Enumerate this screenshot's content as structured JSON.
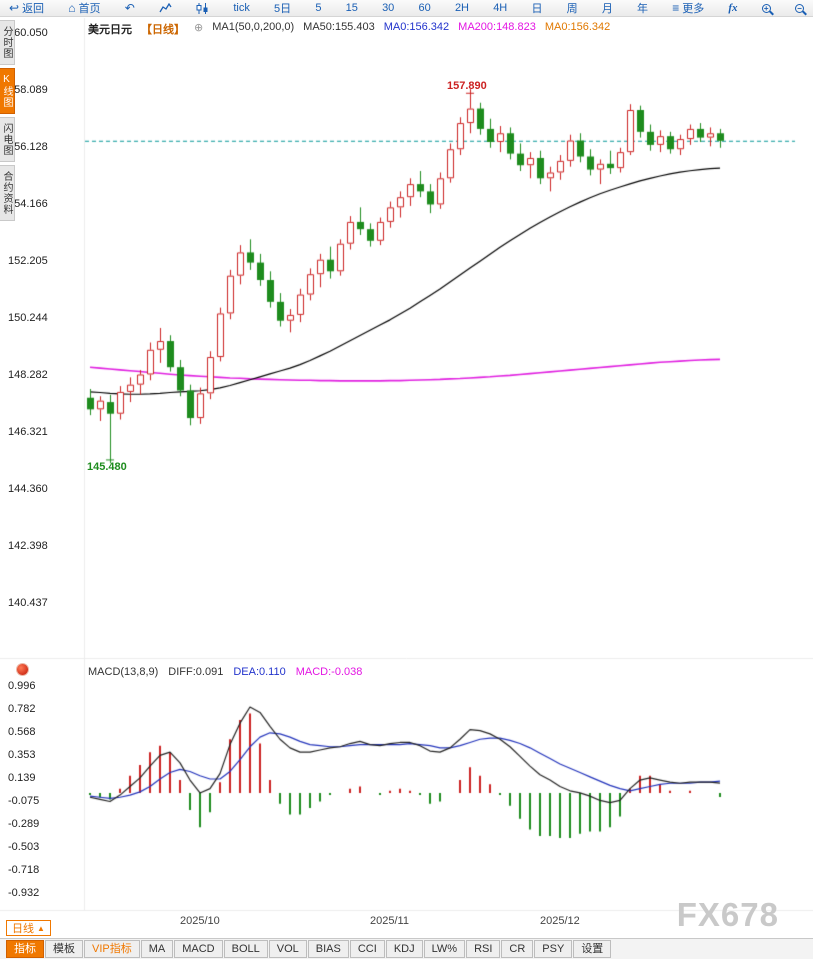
{
  "watermark": "FX678",
  "colors": {
    "up": "#cc2222",
    "down": "#1e8c1e",
    "ma50": "#000000",
    "ma200": "#e020e0",
    "diff": "#222222",
    "dea": "#2233bb",
    "current_line": "#009696",
    "accent_orange": "#f07800",
    "toolbar_blue": "#1a5fb4"
  },
  "toolbar": {
    "items": [
      {
        "name": "back-button",
        "icon": "back-arrow-icon",
        "label": "返回"
      },
      {
        "name": "home-button",
        "icon": "home-icon",
        "label": "首页"
      },
      {
        "name": "refresh-button",
        "icon": "undo-arrow-icon",
        "label": ""
      },
      {
        "name": "line-chart-button",
        "icon": "line-chart-icon",
        "label": ""
      },
      {
        "name": "candle-chart-button",
        "icon": "candle-chart-icon",
        "label": ""
      },
      {
        "name": "period-tick-button",
        "label": "tick"
      },
      {
        "name": "period-5day-button",
        "label": "5日"
      },
      {
        "name": "period-5-button",
        "label": "5"
      },
      {
        "name": "period-15-button",
        "label": "15"
      },
      {
        "name": "period-30-button",
        "label": "30"
      },
      {
        "name": "period-60-button",
        "label": "60"
      },
      {
        "name": "period-2h-button",
        "label": "2H"
      },
      {
        "name": "period-4h-button",
        "label": "4H"
      },
      {
        "name": "period-day-button",
        "label": "日"
      },
      {
        "name": "period-week-button",
        "label": "周"
      },
      {
        "name": "period-month-button",
        "label": "月"
      },
      {
        "name": "period-year-button",
        "label": "年"
      },
      {
        "name": "more-button",
        "icon": "menu-icon",
        "label": "更多"
      },
      {
        "name": "formula-button",
        "label": "fx",
        "italic": true
      },
      {
        "name": "zoom-in-button",
        "icon": "zoom-in-icon",
        "label": ""
      },
      {
        "name": "zoom-out-button",
        "icon": "zoom-out-icon",
        "label": ""
      }
    ]
  },
  "sidebar": {
    "items": [
      {
        "name": "sidebar-item-time-chart",
        "label": "分时图",
        "active": false
      },
      {
        "name": "sidebar-item-kline-chart",
        "label": "K线图",
        "active": true
      },
      {
        "name": "sidebar-item-lightning-chart",
        "label": "闪电图",
        "active": false
      },
      {
        "name": "sidebar-item-contract-info",
        "label": "合约资料",
        "active": false
      }
    ]
  },
  "chart_header": {
    "segments": [
      {
        "name": "chart-title",
        "text": "美元日元",
        "color": "#222222",
        "bold": true
      },
      {
        "name": "chart-period-label",
        "text": "【日线】",
        "color": "#cc6600",
        "bold": true
      },
      {
        "name": "add-indicator-icon",
        "text": "⊕",
        "color": "#999999",
        "icon": true
      },
      {
        "name": "ma-params-label",
        "text": "MA1(50,0,200,0)",
        "color": "#333333"
      },
      {
        "name": "ma50-value",
        "text": "MA50:155.403",
        "color": "#333333"
      },
      {
        "name": "ma0-value-blue",
        "text": "MA0:156.342",
        "color": "#2233cc"
      },
      {
        "name": "ma200-value",
        "text": "MA200:148.823",
        "color": "#e316e3"
      },
      {
        "name": "ma0-value-orange",
        "text": "MA0:156.342",
        "color": "#e07800"
      }
    ]
  },
  "macd_header": {
    "segments": [
      {
        "name": "macd-params-label",
        "text": "MACD(13,8,9)",
        "color": "#333333"
      },
      {
        "name": "macd-diff-value",
        "text": "DIFF:0.091",
        "color": "#333333"
      },
      {
        "name": "macd-dea-value",
        "text": "DEA:0.110",
        "color": "#2233cc"
      },
      {
        "name": "macd-value",
        "text": "MACD:-0.038",
        "color": "#e316e3"
      }
    ]
  },
  "bottom_bar": {
    "left_label": "日线",
    "left_arrow": "▲",
    "tabs": [
      {
        "name": "tab-indicator",
        "label": "指标",
        "style": "active"
      },
      {
        "name": "tab-template",
        "label": "模板",
        "style": "normal"
      },
      {
        "name": "tab-vip-indicator",
        "label": "VIP指标",
        "style": "vip"
      },
      {
        "name": "tab-ma",
        "label": "MA",
        "style": "normal"
      },
      {
        "name": "tab-macd",
        "label": "MACD",
        "style": "normal"
      },
      {
        "name": "tab-boll",
        "label": "BOLL",
        "style": "normal"
      },
      {
        "name": "tab-vol",
        "label": "VOL",
        "style": "normal"
      },
      {
        "name": "tab-bias",
        "label": "BIAS",
        "style": "normal"
      },
      {
        "name": "tab-cci",
        "label": "CCI",
        "style": "normal"
      },
      {
        "name": "tab-kdj",
        "label": "KDJ",
        "style": "normal"
      },
      {
        "name": "tab-lwr",
        "label": "LW%",
        "style": "normal"
      },
      {
        "name": "tab-rsi",
        "label": "RSI",
        "style": "normal"
      },
      {
        "name": "tab-cr",
        "label": "CR",
        "style": "normal"
      },
      {
        "name": "tab-psy",
        "label": "PSY",
        "style": "normal"
      },
      {
        "name": "tab-settings",
        "label": "设置",
        "style": "normal"
      }
    ]
  },
  "chart_data": {
    "type": "candlestick+macd",
    "title": "美元日元【日线】",
    "price_axis_range": [
      140.437,
      160.05
    ],
    "macd_axis_range": [
      -0.932,
      0.996
    ],
    "price_ticks": [
      "160.050",
      "158.089",
      "156.128",
      "154.166",
      "152.205",
      "150.244",
      "148.282",
      "146.321",
      "144.360",
      "142.398",
      "140.437"
    ],
    "macd_ticks": [
      "0.996",
      "0.782",
      "0.568",
      "0.353",
      "0.139",
      "-0.075",
      "-0.289",
      "-0.503",
      "-0.718",
      "-0.932"
    ],
    "month_labels": [
      {
        "label": "2025/10",
        "idx": 11
      },
      {
        "label": "2025/11",
        "idx": 30
      },
      {
        "label": "2025/12",
        "idx": 47
      }
    ],
    "current_price": 156.342,
    "high_annotation": {
      "value": "157.890",
      "idx": 38,
      "price": 157.89
    },
    "low_annotation": {
      "value": "145.480",
      "idx": 2,
      "price": 145.48
    },
    "candles": [
      [
        147.5,
        147.8,
        146.9,
        147.1
      ],
      [
        147.1,
        147.55,
        146.7,
        147.4
      ],
      [
        147.35,
        147.6,
        145.48,
        146.95
      ],
      [
        146.95,
        147.9,
        146.75,
        147.7
      ],
      [
        147.7,
        148.2,
        147.35,
        147.95
      ],
      [
        147.95,
        148.45,
        147.6,
        148.3
      ],
      [
        148.3,
        149.4,
        148.1,
        149.15
      ],
      [
        149.15,
        149.9,
        148.7,
        149.45
      ],
      [
        149.45,
        149.65,
        148.4,
        148.55
      ],
      [
        148.55,
        148.8,
        147.55,
        147.75
      ],
      [
        147.75,
        147.95,
        146.55,
        146.8
      ],
      [
        146.8,
        147.85,
        146.6,
        147.65
      ],
      [
        147.65,
        149.1,
        147.45,
        148.9
      ],
      [
        148.9,
        150.6,
        148.75,
        150.4
      ],
      [
        150.4,
        151.9,
        150.2,
        151.7
      ],
      [
        151.7,
        152.75,
        151.4,
        152.5
      ],
      [
        152.5,
        152.95,
        151.9,
        152.15
      ],
      [
        152.15,
        152.45,
        151.35,
        151.55
      ],
      [
        151.55,
        151.85,
        150.6,
        150.8
      ],
      [
        150.8,
        151.1,
        149.95,
        150.15
      ],
      [
        150.15,
        150.55,
        149.75,
        150.35
      ],
      [
        150.35,
        151.25,
        150.1,
        151.05
      ],
      [
        151.05,
        151.95,
        150.85,
        151.75
      ],
      [
        151.75,
        152.45,
        151.3,
        152.25
      ],
      [
        152.25,
        152.7,
        151.6,
        151.85
      ],
      [
        151.85,
        152.95,
        151.7,
        152.8
      ],
      [
        152.8,
        153.75,
        152.6,
        153.55
      ],
      [
        153.55,
        154.05,
        153.1,
        153.3
      ],
      [
        153.3,
        153.5,
        152.7,
        152.9
      ],
      [
        152.9,
        153.7,
        152.75,
        153.55
      ],
      [
        153.55,
        154.25,
        153.35,
        154.05
      ],
      [
        154.05,
        154.6,
        153.7,
        154.4
      ],
      [
        154.4,
        155.05,
        154.1,
        154.85
      ],
      [
        154.85,
        155.3,
        154.4,
        154.6
      ],
      [
        154.6,
        154.85,
        153.85,
        154.15
      ],
      [
        154.15,
        155.25,
        154.0,
        155.05
      ],
      [
        155.05,
        156.25,
        154.9,
        156.05
      ],
      [
        156.05,
        157.15,
        155.85,
        156.95
      ],
      [
        156.95,
        157.89,
        156.6,
        157.45
      ],
      [
        157.45,
        157.65,
        156.55,
        156.75
      ],
      [
        156.75,
        157.1,
        156.1,
        156.3
      ],
      [
        156.3,
        156.85,
        155.95,
        156.6
      ],
      [
        156.6,
        156.8,
        155.7,
        155.9
      ],
      [
        155.9,
        156.25,
        155.3,
        155.5
      ],
      [
        155.5,
        155.95,
        155.05,
        155.75
      ],
      [
        155.75,
        156.0,
        154.85,
        155.05
      ],
      [
        155.05,
        155.45,
        154.6,
        155.25
      ],
      [
        155.25,
        155.85,
        155.0,
        155.65
      ],
      [
        155.65,
        156.55,
        155.45,
        156.35
      ],
      [
        156.35,
        156.6,
        155.6,
        155.8
      ],
      [
        155.8,
        156.05,
        155.15,
        155.35
      ],
      [
        155.35,
        155.7,
        154.85,
        155.55
      ],
      [
        155.55,
        156.0,
        155.2,
        155.4
      ],
      [
        155.4,
        156.1,
        155.25,
        155.95
      ],
      [
        155.95,
        157.6,
        155.85,
        157.4
      ],
      [
        157.4,
        157.55,
        156.45,
        156.65
      ],
      [
        156.65,
        156.9,
        156.0,
        156.2
      ],
      [
        156.2,
        156.7,
        155.95,
        156.5
      ],
      [
        156.5,
        156.65,
        155.9,
        156.05
      ],
      [
        156.05,
        156.55,
        155.85,
        156.4
      ],
      [
        156.4,
        156.9,
        156.2,
        156.75
      ],
      [
        156.75,
        156.95,
        156.3,
        156.45
      ],
      [
        156.45,
        156.8,
        156.15,
        156.6
      ],
      [
        156.6,
        156.75,
        156.1,
        156.34
      ]
    ],
    "ma50": [
      147.7,
      147.68,
      147.65,
      147.63,
      147.62,
      147.62,
      147.63,
      147.65,
      147.68,
      147.7,
      147.72,
      147.74,
      147.78,
      147.84,
      147.92,
      148.02,
      148.12,
      148.22,
      148.32,
      148.42,
      148.52,
      148.64,
      148.78,
      148.94,
      149.1,
      149.28,
      149.46,
      149.64,
      149.82,
      150.0,
      150.18,
      150.38,
      150.58,
      150.8,
      151.02,
      151.24,
      151.48,
      151.72,
      151.96,
      152.2,
      152.44,
      152.68,
      152.9,
      153.12,
      153.33,
      153.53,
      153.72,
      153.9,
      154.07,
      154.23,
      154.38,
      154.52,
      154.64,
      154.75,
      154.86,
      154.96,
      155.05,
      155.13,
      155.2,
      155.26,
      155.31,
      155.35,
      155.38,
      155.4
    ],
    "ma200": [
      148.55,
      148.52,
      148.49,
      148.46,
      148.43,
      148.4,
      148.37,
      148.34,
      148.31,
      148.28,
      148.26,
      148.24,
      148.22,
      148.2,
      148.18,
      148.17,
      148.15,
      148.14,
      148.13,
      148.12,
      148.11,
      148.1,
      148.1,
      148.09,
      148.09,
      148.08,
      148.08,
      148.08,
      148.08,
      148.08,
      148.09,
      148.09,
      148.1,
      148.11,
      148.12,
      148.13,
      148.15,
      148.16,
      148.18,
      148.2,
      148.22,
      148.25,
      148.27,
      148.3,
      148.33,
      148.36,
      148.39,
      148.42,
      148.45,
      148.48,
      148.51,
      148.54,
      148.57,
      148.6,
      148.63,
      148.66,
      148.69,
      148.72,
      148.74,
      148.76,
      148.78,
      148.8,
      148.81,
      148.82
    ],
    "macd": {
      "diff": [
        -0.04,
        -0.06,
        -0.08,
        -0.02,
        0.06,
        0.14,
        0.25,
        0.35,
        0.38,
        0.28,
        0.12,
        0.0,
        0.04,
        0.18,
        0.45,
        0.65,
        0.8,
        0.75,
        0.62,
        0.5,
        0.42,
        0.38,
        0.38,
        0.4,
        0.42,
        0.43,
        0.46,
        0.48,
        0.45,
        0.44,
        0.46,
        0.47,
        0.47,
        0.44,
        0.39,
        0.38,
        0.42,
        0.5,
        0.59,
        0.58,
        0.55,
        0.5,
        0.43,
        0.34,
        0.25,
        0.17,
        0.12,
        0.06,
        0.02,
        0.0,
        -0.03,
        -0.07,
        -0.09,
        -0.07,
        0.04,
        0.12,
        0.14,
        0.12,
        0.1,
        0.09,
        0.1,
        0.1,
        0.1,
        0.091
      ],
      "dea": [
        -0.03,
        -0.04,
        -0.05,
        -0.04,
        -0.02,
        0.01,
        0.06,
        0.13,
        0.19,
        0.22,
        0.2,
        0.16,
        0.13,
        0.13,
        0.2,
        0.31,
        0.43,
        0.52,
        0.56,
        0.55,
        0.52,
        0.48,
        0.45,
        0.44,
        0.43,
        0.43,
        0.44,
        0.45,
        0.45,
        0.45,
        0.45,
        0.45,
        0.46,
        0.45,
        0.44,
        0.42,
        0.42,
        0.44,
        0.47,
        0.5,
        0.51,
        0.51,
        0.49,
        0.46,
        0.42,
        0.37,
        0.32,
        0.27,
        0.23,
        0.19,
        0.15,
        0.11,
        0.07,
        0.04,
        0.02,
        0.04,
        0.06,
        0.08,
        0.09,
        0.09,
        0.09,
        0.1,
        0.1,
        0.11
      ]
    }
  }
}
